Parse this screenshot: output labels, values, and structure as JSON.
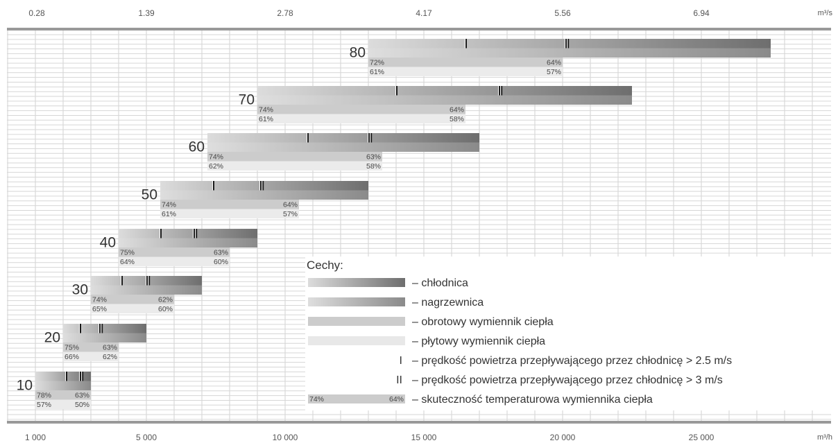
{
  "chart_data": {
    "type": "bar",
    "subtype": "horizontal-range",
    "x_axis_bottom": {
      "unit": "m³/h",
      "ticks": [
        "1 000",
        "5 000",
        "10 000",
        "15 000",
        "20 000",
        "25 000"
      ],
      "tick_values": [
        1000,
        5000,
        10000,
        15000,
        20000,
        25000
      ],
      "range": [
        0,
        30000
      ]
    },
    "x_axis_top": {
      "unit": "m³/s",
      "ticks": [
        "0.28",
        "1.39",
        "2.78",
        "4.17",
        "5.56",
        "6.94"
      ]
    },
    "grid": true,
    "sizes": [
      {
        "label": "10",
        "chlodnica": [
          1000,
          3000
        ],
        "nagrzewnica": [
          1000,
          3000
        ],
        "speed_25": 2100,
        "speed_3": 2600,
        "obrotowy": [
          1000,
          3000
        ],
        "plytowy": [
          1000,
          3000
        ],
        "rot_eff_start": "78%",
        "rot_eff_end": "63%",
        "plate_eff_start": "57%",
        "plate_eff_end": "50%"
      },
      {
        "label": "20",
        "chlodnica": [
          2000,
          5000
        ],
        "nagrzewnica": [
          2000,
          5000
        ],
        "speed_25": 2600,
        "speed_3": 3300,
        "obrotowy": [
          2000,
          4000
        ],
        "plytowy": [
          2000,
          4000
        ],
        "rot_eff_start": "75%",
        "rot_eff_end": "63%",
        "plate_eff_start": "66%",
        "plate_eff_end": "62%"
      },
      {
        "label": "30",
        "chlodnica": [
          3000,
          7000
        ],
        "nagrzewnica": [
          3000,
          7000
        ],
        "speed_25": 4100,
        "speed_3": 5000,
        "obrotowy": [
          3000,
          6000
        ],
        "plytowy": [
          3000,
          6000
        ],
        "rot_eff_start": "74%",
        "rot_eff_end": "62%",
        "plate_eff_start": "65%",
        "plate_eff_end": "60%"
      },
      {
        "label": "40",
        "chlodnica": [
          4000,
          9000
        ],
        "nagrzewnica": [
          4000,
          9000
        ],
        "speed_25": 5500,
        "speed_3": 6700,
        "obrotowy": [
          4000,
          8000
        ],
        "plytowy": [
          4000,
          8000
        ],
        "rot_eff_start": "75%",
        "rot_eff_end": "63%",
        "plate_eff_start": "64%",
        "plate_eff_end": "60%"
      },
      {
        "label": "50",
        "chlodnica": [
          5500,
          13000
        ],
        "nagrzewnica": [
          5500,
          13000
        ],
        "speed_25": 7400,
        "speed_3": 9100,
        "obrotowy": [
          5500,
          10500
        ],
        "plytowy": [
          5500,
          10500
        ],
        "rot_eff_start": "74%",
        "rot_eff_end": "64%",
        "plate_eff_start": "61%",
        "plate_eff_end": "57%"
      },
      {
        "label": "60",
        "chlodnica": [
          7200,
          17000
        ],
        "nagrzewnica": [
          7200,
          17000
        ],
        "speed_25": 10800,
        "speed_3": 13000,
        "obrotowy": [
          7200,
          13500
        ],
        "plytowy": [
          7200,
          13500
        ],
        "rot_eff_start": "74%",
        "rot_eff_end": "63%",
        "plate_eff_start": "62%",
        "plate_eff_end": "58%"
      },
      {
        "label": "70",
        "chlodnica": [
          9000,
          22500
        ],
        "nagrzewnica": [
          9000,
          22500
        ],
        "speed_25": 14000,
        "speed_3": 17700,
        "obrotowy": [
          9000,
          16500
        ],
        "plytowy": [
          9000,
          16500
        ],
        "rot_eff_start": "74%",
        "rot_eff_end": "64%",
        "plate_eff_start": "61%",
        "plate_eff_end": "58%"
      },
      {
        "label": "80",
        "chlodnica": [
          13000,
          27500
        ],
        "nagrzewnica": [
          13000,
          27500
        ],
        "speed_25": 16500,
        "speed_3": 20100,
        "obrotowy": [
          13000,
          20000
        ],
        "plytowy": [
          13000,
          20000
        ],
        "rot_eff_start": "72%",
        "rot_eff_end": "64%",
        "plate_eff_start": "61%",
        "plate_eff_end": "57%"
      }
    ],
    "legend": {
      "title": "Cechy:",
      "items": [
        {
          "key": "chlodnica",
          "text": "– chłodnica",
          "color": "#6e6e6e"
        },
        {
          "key": "nagrzewnica",
          "text": "– nagrzewnica",
          "color": "#8a8a8a"
        },
        {
          "key": "obrotowy",
          "text": "– obrotowy wymiennik ciepła",
          "color": "#cccccc"
        },
        {
          "key": "plytowy",
          "text": "– płytowy wymiennik ciepła",
          "color": "#e8e8e8"
        },
        {
          "key": "speed_25",
          "mark": "I",
          "text": "– prędkość powietrza przepływającego przez chłodnicę > 2.5 m/s"
        },
        {
          "key": "speed_3",
          "mark": "II",
          "text": "– prędkość powietrza przepływającego przez chłodnicę > 3 m/s"
        },
        {
          "key": "efficiency",
          "sample_start": "74%",
          "sample_end": "64%",
          "text": "– skuteczność temperaturowa wymiennika ciepła"
        }
      ]
    }
  }
}
